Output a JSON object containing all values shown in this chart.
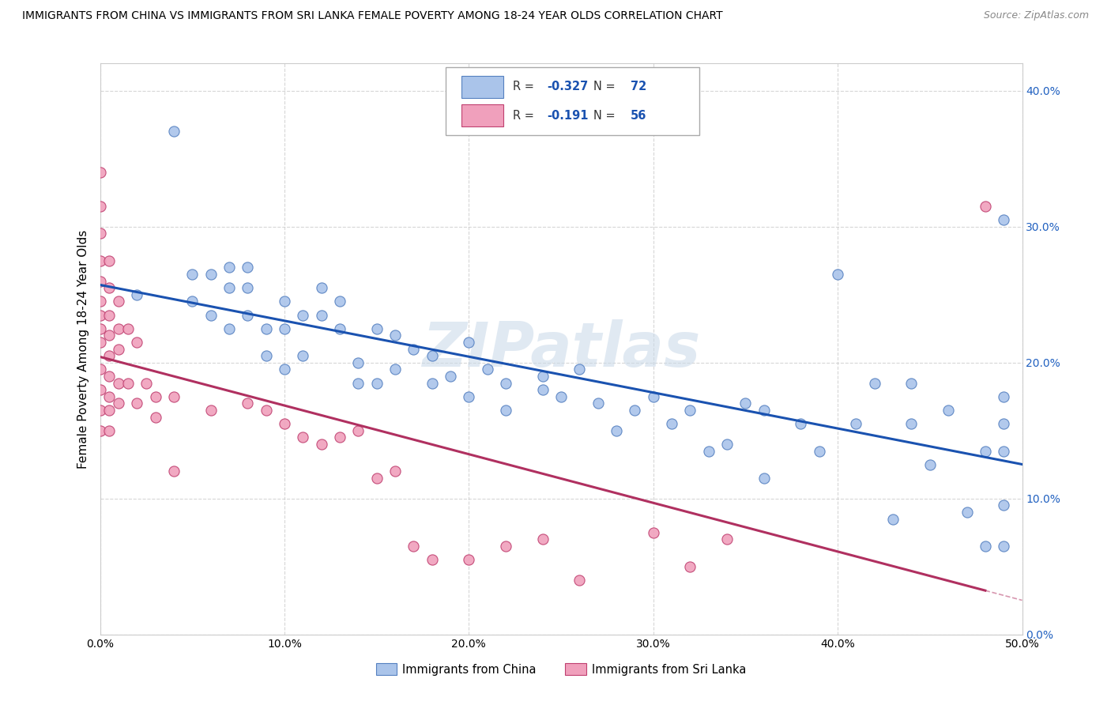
{
  "title": "IMMIGRANTS FROM CHINA VS IMMIGRANTS FROM SRI LANKA FEMALE POVERTY AMONG 18-24 YEAR OLDS CORRELATION CHART",
  "source": "Source: ZipAtlas.com",
  "ylabel": "Female Poverty Among 18-24 Year Olds",
  "watermark": "ZIPatlas",
  "legend_china": "Immigrants from China",
  "legend_srilanka": "Immigrants from Sri Lanka",
  "R_china": -0.327,
  "N_china": 72,
  "R_srilanka": -0.191,
  "N_srilanka": 56,
  "xlim": [
    0.0,
    0.5
  ],
  "ylim": [
    0.0,
    0.42
  ],
  "yticks": [
    0.0,
    0.1,
    0.2,
    0.3,
    0.4
  ],
  "xticks": [
    0.0,
    0.1,
    0.2,
    0.3,
    0.4,
    0.5
  ],
  "color_china": "#aac4ea",
  "color_srilanka": "#f0a0bc",
  "edge_china": "#5580c0",
  "edge_srilanka": "#c04070",
  "trendline_china": "#1a52b0",
  "trendline_srilanka": "#b03060",
  "background": "#ffffff",
  "grid_color": "#cccccc",
  "china_x": [
    0.02,
    0.04,
    0.05,
    0.05,
    0.06,
    0.06,
    0.07,
    0.07,
    0.07,
    0.08,
    0.08,
    0.08,
    0.09,
    0.09,
    0.1,
    0.1,
    0.1,
    0.11,
    0.11,
    0.12,
    0.12,
    0.13,
    0.13,
    0.14,
    0.14,
    0.15,
    0.15,
    0.16,
    0.16,
    0.17,
    0.18,
    0.18,
    0.19,
    0.2,
    0.2,
    0.21,
    0.22,
    0.22,
    0.24,
    0.24,
    0.25,
    0.26,
    0.27,
    0.28,
    0.29,
    0.3,
    0.31,
    0.32,
    0.33,
    0.34,
    0.35,
    0.36,
    0.36,
    0.38,
    0.39,
    0.4,
    0.41,
    0.42,
    0.43,
    0.44,
    0.44,
    0.45,
    0.46,
    0.47,
    0.48,
    0.48,
    0.49,
    0.49,
    0.49,
    0.49,
    0.49,
    0.49
  ],
  "china_y": [
    0.25,
    0.37,
    0.265,
    0.245,
    0.265,
    0.235,
    0.27,
    0.255,
    0.225,
    0.27,
    0.255,
    0.235,
    0.225,
    0.205,
    0.245,
    0.225,
    0.195,
    0.235,
    0.205,
    0.255,
    0.235,
    0.245,
    0.225,
    0.2,
    0.185,
    0.225,
    0.185,
    0.22,
    0.195,
    0.21,
    0.205,
    0.185,
    0.19,
    0.215,
    0.175,
    0.195,
    0.185,
    0.165,
    0.19,
    0.18,
    0.175,
    0.195,
    0.17,
    0.15,
    0.165,
    0.175,
    0.155,
    0.165,
    0.135,
    0.14,
    0.17,
    0.165,
    0.115,
    0.155,
    0.135,
    0.265,
    0.155,
    0.185,
    0.085,
    0.185,
    0.155,
    0.125,
    0.165,
    0.09,
    0.135,
    0.065,
    0.305,
    0.175,
    0.155,
    0.135,
    0.095,
    0.065
  ],
  "srilanka_x": [
    0.0,
    0.0,
    0.0,
    0.0,
    0.0,
    0.0,
    0.0,
    0.0,
    0.0,
    0.0,
    0.0,
    0.0,
    0.0,
    0.005,
    0.005,
    0.005,
    0.005,
    0.005,
    0.005,
    0.005,
    0.005,
    0.005,
    0.01,
    0.01,
    0.01,
    0.01,
    0.01,
    0.015,
    0.015,
    0.02,
    0.02,
    0.025,
    0.03,
    0.03,
    0.04,
    0.04,
    0.06,
    0.08,
    0.09,
    0.1,
    0.11,
    0.12,
    0.13,
    0.14,
    0.15,
    0.16,
    0.17,
    0.18,
    0.2,
    0.22,
    0.24,
    0.26,
    0.3,
    0.32,
    0.34,
    0.48
  ],
  "srilanka_y": [
    0.34,
    0.315,
    0.295,
    0.275,
    0.26,
    0.245,
    0.235,
    0.225,
    0.215,
    0.195,
    0.18,
    0.165,
    0.15,
    0.275,
    0.255,
    0.235,
    0.22,
    0.205,
    0.19,
    0.175,
    0.165,
    0.15,
    0.245,
    0.225,
    0.21,
    0.185,
    0.17,
    0.225,
    0.185,
    0.215,
    0.17,
    0.185,
    0.16,
    0.175,
    0.175,
    0.12,
    0.165,
    0.17,
    0.165,
    0.155,
    0.145,
    0.14,
    0.145,
    0.15,
    0.115,
    0.12,
    0.065,
    0.055,
    0.055,
    0.065,
    0.07,
    0.04,
    0.075,
    0.05,
    0.07,
    0.315
  ]
}
